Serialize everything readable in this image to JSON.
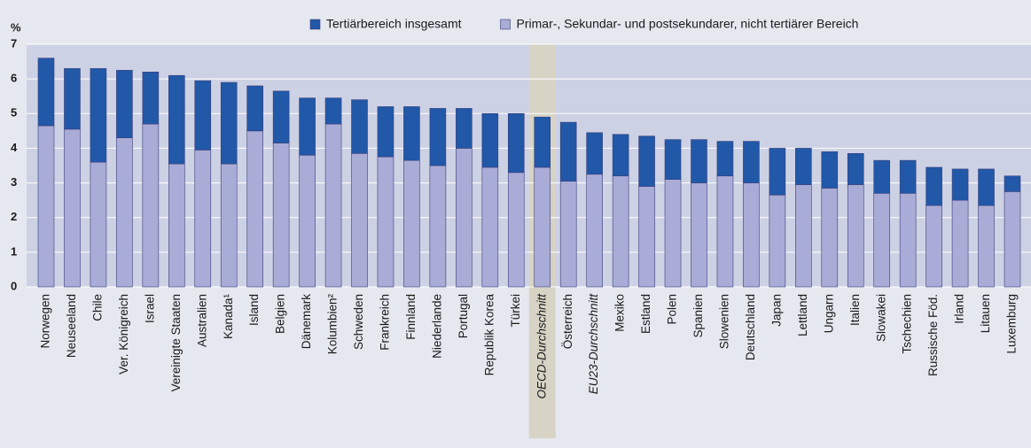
{
  "chart_data": {
    "type": "stacked_bar",
    "y_label": "%",
    "categories": [
      "Norwegen",
      "Neuseeland",
      "Chile",
      "Ver. Königreich",
      "Israel",
      "Vereinigte Staaten",
      "Australien",
      "Kanada¹",
      "Island",
      "Belgien",
      "Dänemark",
      "Kolumbien²",
      "Schweden",
      "Frankreich",
      "Finnland",
      "Niederlande",
      "Portugal",
      "Republik Korea",
      "Türkei",
      "OECD-Durchschnitt",
      "Österreich",
      "EU23-Durchschnitt",
      "Mexiko",
      "Estland",
      "Polen",
      "Spanien",
      "Slowenien",
      "Deutschland",
      "Japan",
      "Lettland",
      "Ungarn",
      "Italien",
      "Slowakei",
      "Tschechien",
      "Russische Föd.",
      "Irland",
      "Litauen",
      "Luxemburg"
    ],
    "series": [
      {
        "name": "Tertiärbereich insgesamt",
        "color": "#2158a8",
        "values": [
          1.95,
          1.75,
          2.7,
          1.95,
          1.5,
          2.55,
          2.0,
          2.35,
          1.3,
          1.5,
          1.65,
          0.75,
          1.55,
          1.45,
          1.55,
          1.65,
          1.15,
          1.55,
          1.7,
          1.45,
          1.7,
          1.2,
          1.2,
          1.45,
          1.15,
          1.25,
          1.0,
          1.2,
          1.35,
          1.05,
          1.05,
          0.9,
          0.95,
          0.95,
          1.1,
          0.9,
          1.05,
          0.45
        ]
      },
      {
        "name": "Primar-, Sekundar- und postsekundarer, nicht tertiärer Bereich",
        "color": "#a9acd6",
        "values": [
          4.65,
          4.55,
          3.6,
          4.3,
          4.7,
          3.55,
          3.95,
          3.55,
          4.5,
          4.15,
          3.8,
          4.7,
          3.85,
          3.75,
          3.65,
          3.5,
          4.0,
          3.45,
          3.3,
          3.45,
          3.05,
          3.25,
          3.2,
          2.9,
          3.1,
          3.0,
          3.2,
          3.0,
          2.65,
          2.95,
          2.85,
          2.95,
          2.7,
          2.7,
          2.35,
          2.5,
          2.35,
          2.75
        ]
      }
    ],
    "ylim": [
      0,
      7
    ],
    "yticks": [
      0,
      1,
      2,
      3,
      4,
      5,
      6,
      7
    ],
    "grid": true,
    "highlight": [
      19
    ],
    "italic": [
      19,
      21
    ]
  }
}
